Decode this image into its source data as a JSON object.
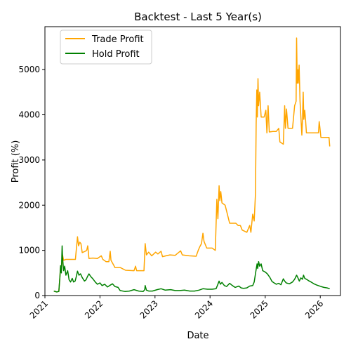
{
  "chart_data": {
    "type": "line",
    "title": "Backtest - Last 5 Year(s)",
    "xlabel": "Date",
    "ylabel": "Profit (%)",
    "x_type": "date",
    "xlim": [
      "2021-01-01",
      "2026-05-15"
    ],
    "ylim": [
      0,
      5950
    ],
    "x_ticks": [
      "2021-01-01",
      "2022-01-01",
      "2023-01-01",
      "2024-01-01",
      "2025-01-01",
      "2026-01-01"
    ],
    "x_tick_labels": [
      "2021",
      "2022",
      "2023",
      "2024",
      "2025",
      "2026"
    ],
    "y_ticks": [
      0,
      1000,
      2000,
      3000,
      4000,
      5000
    ],
    "y_tick_labels": [
      "0",
      "1000",
      "2000",
      "3000",
      "4000",
      "5000"
    ],
    "grid": false,
    "legend_position": "upper-left",
    "series": [
      {
        "name": "Trade Profit",
        "color": "#ffa500",
        "points": [
          [
            "2021-03-01",
            100
          ],
          [
            "2021-03-20",
            80
          ],
          [
            "2021-04-03",
            90
          ],
          [
            "2021-04-10",
            400
          ],
          [
            "2021-04-15",
            660
          ],
          [
            "2021-04-22",
            640
          ],
          [
            "2021-04-28",
            900
          ],
          [
            "2021-05-05",
            780
          ],
          [
            "2021-05-20",
            800
          ],
          [
            "2021-06-15",
            800
          ],
          [
            "2021-07-10",
            800
          ],
          [
            "2021-07-22",
            800
          ],
          [
            "2021-08-05",
            1300
          ],
          [
            "2021-08-12",
            1100
          ],
          [
            "2021-08-20",
            1180
          ],
          [
            "2021-08-28",
            1150
          ],
          [
            "2021-09-05",
            950
          ],
          [
            "2021-09-25",
            980
          ],
          [
            "2021-10-05",
            1000
          ],
          [
            "2021-10-12",
            1100
          ],
          [
            "2021-10-20",
            820
          ],
          [
            "2021-11-15",
            830
          ],
          [
            "2021-12-15",
            820
          ],
          [
            "2022-01-10",
            880
          ],
          [
            "2022-01-20",
            800
          ],
          [
            "2022-02-10",
            750
          ],
          [
            "2022-03-01",
            750
          ],
          [
            "2022-03-10",
            980
          ],
          [
            "2022-03-15",
            780
          ],
          [
            "2022-04-01",
            680
          ],
          [
            "2022-04-10",
            620
          ],
          [
            "2022-05-15",
            620
          ],
          [
            "2022-06-20",
            560
          ],
          [
            "2022-08-15",
            550
          ],
          [
            "2022-08-25",
            650
          ],
          [
            "2022-09-01",
            550
          ],
          [
            "2022-10-20",
            550
          ],
          [
            "2022-10-28",
            1150
          ],
          [
            "2022-11-05",
            900
          ],
          [
            "2022-11-20",
            960
          ],
          [
            "2022-12-10",
            880
          ],
          [
            "2023-01-05",
            960
          ],
          [
            "2023-01-20",
            920
          ],
          [
            "2023-02-10",
            980
          ],
          [
            "2023-02-20",
            860
          ],
          [
            "2023-03-15",
            880
          ],
          [
            "2023-04-10",
            900
          ],
          [
            "2023-05-15",
            890
          ],
          [
            "2023-06-20",
            990
          ],
          [
            "2023-07-01",
            900
          ],
          [
            "2023-08-15",
            880
          ],
          [
            "2023-10-01",
            870
          ],
          [
            "2023-10-15",
            1000
          ],
          [
            "2023-10-25",
            1080
          ],
          [
            "2023-11-05",
            1150
          ],
          [
            "2023-11-15",
            1380
          ],
          [
            "2023-11-22",
            1200
          ],
          [
            "2023-12-10",
            1050
          ],
          [
            "2024-01-15",
            1050
          ],
          [
            "2024-02-05",
            1000
          ],
          [
            "2024-02-15",
            2130
          ],
          [
            "2024-02-22",
            1700
          ],
          [
            "2024-03-01",
            2430
          ],
          [
            "2024-03-06",
            2100
          ],
          [
            "2024-03-12",
            2300
          ],
          [
            "2024-03-20",
            2050
          ],
          [
            "2024-04-10",
            2000
          ],
          [
            "2024-04-25",
            1800
          ],
          [
            "2024-05-10",
            1600
          ],
          [
            "2024-06-20",
            1600
          ],
          [
            "2024-07-05",
            1550
          ],
          [
            "2024-07-20",
            1550
          ],
          [
            "2024-08-01",
            1450
          ],
          [
            "2024-09-01",
            1400
          ],
          [
            "2024-09-20",
            1550
          ],
          [
            "2024-09-28",
            1400
          ],
          [
            "2024-10-10",
            1800
          ],
          [
            "2024-10-20",
            1650
          ],
          [
            "2024-10-28",
            2250
          ],
          [
            "2024-11-02",
            3800
          ],
          [
            "2024-11-06",
            4550
          ],
          [
            "2024-11-10",
            3950
          ],
          [
            "2024-11-14",
            4800
          ],
          [
            "2024-11-18",
            4200
          ],
          [
            "2024-11-25",
            4500
          ],
          [
            "2024-12-05",
            3950
          ],
          [
            "2024-12-25",
            3950
          ],
          [
            "2025-01-05",
            4100
          ],
          [
            "2025-01-12",
            3600
          ],
          [
            "2025-01-20",
            4200
          ],
          [
            "2025-01-28",
            3620
          ],
          [
            "2025-02-20",
            3630
          ],
          [
            "2025-03-15",
            3630
          ],
          [
            "2025-04-01",
            3700
          ],
          [
            "2025-04-08",
            3400
          ],
          [
            "2025-05-01",
            3350
          ],
          [
            "2025-05-10",
            4200
          ],
          [
            "2025-05-15",
            3700
          ],
          [
            "2025-05-22",
            4130
          ],
          [
            "2025-06-01",
            3700
          ],
          [
            "2025-07-01",
            3700
          ],
          [
            "2025-07-15",
            4200
          ],
          [
            "2025-07-25",
            4300
          ],
          [
            "2025-07-28",
            5700
          ],
          [
            "2025-08-01",
            4700
          ],
          [
            "2025-08-05",
            5000
          ],
          [
            "2025-08-08",
            4700
          ],
          [
            "2025-08-14",
            5100
          ],
          [
            "2025-08-20",
            4300
          ],
          [
            "2025-09-01",
            3550
          ],
          [
            "2025-09-05",
            3900
          ],
          [
            "2025-09-10",
            4500
          ],
          [
            "2025-09-14",
            3900
          ],
          [
            "2025-09-20",
            4100
          ],
          [
            "2025-09-25",
            3900
          ],
          [
            "2025-10-01",
            3600
          ],
          [
            "2025-11-15",
            3600
          ],
          [
            "2025-12-20",
            3600
          ],
          [
            "2025-12-25",
            3850
          ],
          [
            "2025-12-30",
            3700
          ],
          [
            "2026-01-05",
            3500
          ],
          [
            "2026-02-01",
            3500
          ],
          [
            "2026-02-28",
            3500
          ],
          [
            "2026-03-05",
            3300
          ]
        ]
      },
      {
        "name": "Hold Profit",
        "color": "#008000",
        "points": [
          [
            "2021-03-01",
            100
          ],
          [
            "2021-03-20",
            80
          ],
          [
            "2021-04-03",
            90
          ],
          [
            "2021-04-10",
            400
          ],
          [
            "2021-04-15",
            660
          ],
          [
            "2021-04-20",
            500
          ],
          [
            "2021-04-25",
            1100
          ],
          [
            "2021-04-28",
            850
          ],
          [
            "2021-05-05",
            550
          ],
          [
            "2021-05-12",
            650
          ],
          [
            "2021-05-20",
            450
          ],
          [
            "2021-06-01",
            550
          ],
          [
            "2021-06-10",
            350
          ],
          [
            "2021-06-20",
            300
          ],
          [
            "2021-07-01",
            380
          ],
          [
            "2021-07-10",
            300
          ],
          [
            "2021-07-20",
            320
          ],
          [
            "2021-07-28",
            420
          ],
          [
            "2021-08-05",
            540
          ],
          [
            "2021-08-15",
            450
          ],
          [
            "2021-08-25",
            480
          ],
          [
            "2021-09-05",
            400
          ],
          [
            "2021-09-20",
            320
          ],
          [
            "2021-10-01",
            350
          ],
          [
            "2021-10-10",
            420
          ],
          [
            "2021-10-20",
            480
          ],
          [
            "2021-11-01",
            420
          ],
          [
            "2021-11-15",
            370
          ],
          [
            "2021-12-01",
            300
          ],
          [
            "2021-12-15",
            250
          ],
          [
            "2022-01-01",
            280
          ],
          [
            "2022-01-15",
            220
          ],
          [
            "2022-02-01",
            250
          ],
          [
            "2022-02-20",
            190
          ],
          [
            "2022-03-10",
            230
          ],
          [
            "2022-03-25",
            260
          ],
          [
            "2022-04-10",
            200
          ],
          [
            "2022-05-01",
            180
          ],
          [
            "2022-05-15",
            110
          ],
          [
            "2022-06-15",
            90
          ],
          [
            "2022-07-15",
            100
          ],
          [
            "2022-08-15",
            130
          ],
          [
            "2022-09-15",
            100
          ],
          [
            "2022-10-15",
            90
          ],
          [
            "2022-10-25",
            130
          ],
          [
            "2022-10-28",
            220
          ],
          [
            "2022-11-05",
            120
          ],
          [
            "2022-11-20",
            100
          ],
          [
            "2022-12-15",
            100
          ],
          [
            "2023-01-15",
            130
          ],
          [
            "2023-02-10",
            150
          ],
          [
            "2023-03-10",
            120
          ],
          [
            "2023-04-15",
            130
          ],
          [
            "2023-05-15",
            110
          ],
          [
            "2023-06-15",
            110
          ],
          [
            "2023-07-15",
            120
          ],
          [
            "2023-08-20",
            100
          ],
          [
            "2023-09-20",
            100
          ],
          [
            "2023-10-20",
            120
          ],
          [
            "2023-11-15",
            150
          ],
          [
            "2023-12-15",
            140
          ],
          [
            "2024-01-15",
            140
          ],
          [
            "2024-02-10",
            150
          ],
          [
            "2024-02-20",
            230
          ],
          [
            "2024-03-01",
            320
          ],
          [
            "2024-03-10",
            250
          ],
          [
            "2024-03-20",
            290
          ],
          [
            "2024-04-05",
            220
          ],
          [
            "2024-04-20",
            200
          ],
          [
            "2024-05-10",
            270
          ],
          [
            "2024-05-25",
            230
          ],
          [
            "2024-06-15",
            180
          ],
          [
            "2024-07-10",
            210
          ],
          [
            "2024-07-25",
            170
          ],
          [
            "2024-08-10",
            160
          ],
          [
            "2024-09-01",
            170
          ],
          [
            "2024-09-20",
            210
          ],
          [
            "2024-10-10",
            220
          ],
          [
            "2024-10-20",
            300
          ],
          [
            "2024-11-01",
            560
          ],
          [
            "2024-11-08",
            700
          ],
          [
            "2024-11-12",
            600
          ],
          [
            "2024-11-18",
            750
          ],
          [
            "2024-11-25",
            650
          ],
          [
            "2024-12-05",
            700
          ],
          [
            "2024-12-15",
            550
          ],
          [
            "2025-01-01",
            520
          ],
          [
            "2025-01-15",
            480
          ],
          [
            "2025-02-01",
            400
          ],
          [
            "2025-02-15",
            310
          ],
          [
            "2025-03-01",
            280
          ],
          [
            "2025-03-15",
            250
          ],
          [
            "2025-04-01",
            270
          ],
          [
            "2025-04-15",
            240
          ],
          [
            "2025-05-01",
            370
          ],
          [
            "2025-05-10",
            320
          ],
          [
            "2025-05-20",
            280
          ],
          [
            "2025-06-10",
            260
          ],
          [
            "2025-07-01",
            300
          ],
          [
            "2025-07-15",
            360
          ],
          [
            "2025-07-28",
            450
          ],
          [
            "2025-08-05",
            400
          ],
          [
            "2025-08-15",
            320
          ],
          [
            "2025-08-25",
            390
          ],
          [
            "2025-09-05",
            360
          ],
          [
            "2025-09-12",
            450
          ],
          [
            "2025-09-20",
            380
          ],
          [
            "2025-10-01",
            360
          ],
          [
            "2025-10-15",
            330
          ],
          [
            "2025-11-01",
            300
          ],
          [
            "2025-11-20",
            260
          ],
          [
            "2025-12-10",
            230
          ],
          [
            "2026-01-05",
            200
          ],
          [
            "2026-01-25",
            180
          ],
          [
            "2026-02-15",
            170
          ],
          [
            "2026-03-05",
            150
          ]
        ]
      }
    ]
  }
}
